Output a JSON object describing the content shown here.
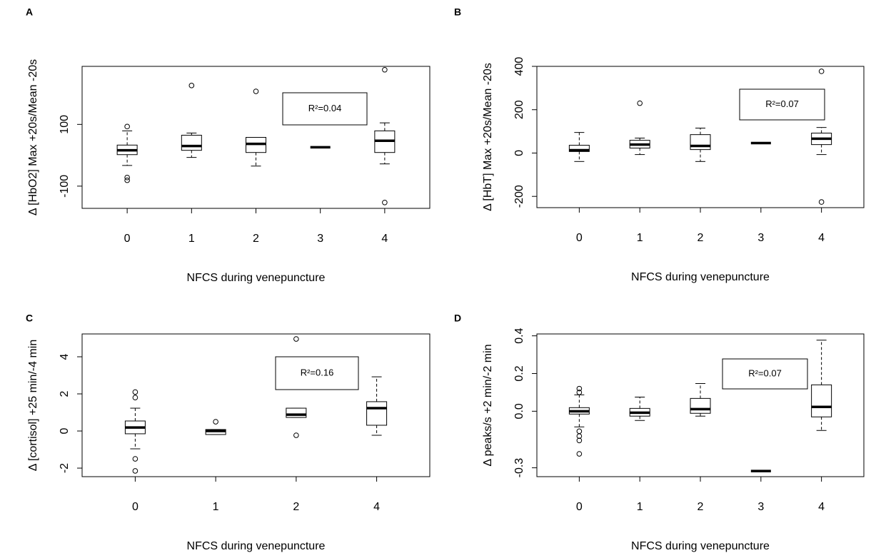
{
  "chart_data": [
    {
      "type": "box",
      "panel": "A",
      "y_label": "Δ [HbO2] Max +20s/Mean -20s",
      "x_label": "NFCS during venepuncture",
      "annotation": "R²=0.04",
      "categories": [
        "0",
        "1",
        "2",
        "3",
        "4"
      ],
      "whisker_low": [
        -33,
        -7,
        -35,
        26,
        -28
      ],
      "q1": [
        2,
        16,
        9,
        26,
        9
      ],
      "median": [
        16,
        30,
        37,
        26,
        47
      ],
      "q3": [
        33,
        65,
        58,
        26,
        79
      ],
      "whisker_high": [
        79,
        72,
        58,
        26,
        105
      ],
      "outliers": [
        [
          93,
          -72,
          -81
        ],
        [
          226
        ],
        [
          207
        ],
        [],
        [
          277,
          -153
        ]
      ],
      "ylim": [
        -172,
        288
      ],
      "yticks": [
        -100,
        100
      ]
    },
    {
      "type": "box",
      "panel": "B",
      "y_label": "Δ [HbT] Max +20s/Mean -20s",
      "x_label": "NFCS during venepuncture",
      "annotation": "R²=0.07",
      "categories": [
        "0",
        "1",
        "2",
        "3",
        "4"
      ],
      "whisker_low": [
        -39,
        -7,
        -39,
        46,
        -7
      ],
      "q1": [
        7,
        23,
        16,
        46,
        39
      ],
      "median": [
        13,
        39,
        33,
        46,
        66
      ],
      "q3": [
        36,
        59,
        85,
        46,
        92
      ],
      "whisker_high": [
        95,
        69,
        115,
        46,
        118
      ],
      "outliers": [
        [],
        [
          230
        ],
        [],
        [],
        [
          377,
          -226
        ]
      ],
      "ylim": [
        -252,
        400
      ],
      "yticks": [
        -200,
        0,
        200,
        400
      ]
    },
    {
      "type": "box",
      "panel": "C",
      "y_label": "Δ [cortisol] +25 min/-4 min",
      "x_label": "NFCS during venepuncture",
      "annotation": "R²=0.16",
      "categories": [
        "0",
        "1",
        "2",
        "4"
      ],
      "whisker_low": [
        -0.96,
        -0.19,
        0.73,
        -0.23
      ],
      "q1": [
        -0.15,
        -0.19,
        0.73,
        0.31
      ],
      "median": [
        0.19,
        0,
        0.88,
        1.23
      ],
      "q3": [
        0.54,
        0.08,
        1.23,
        1.58
      ],
      "whisker_high": [
        1.23,
        0.08,
        1.23,
        2.92
      ],
      "outliers": [
        [
          2.1,
          1.8,
          -1.5,
          -2.15
        ],
        [
          0.5
        ],
        [
          4.96,
          -0.23
        ],
        []
      ],
      "ylim": [
        -2.46,
        5.23
      ],
      "yticks": [
        -2,
        0,
        2,
        4
      ]
    },
    {
      "type": "box",
      "panel": "D",
      "y_label": "Δ peaks/s +2 min/-2 min",
      "x_label": "NFCS during venepuncture",
      "annotation": "R²=0.07",
      "categories": [
        "0",
        "1",
        "2",
        "3",
        "4"
      ],
      "whisker_low": [
        -0.083,
        -0.049,
        -0.026,
        -0.317,
        -0.102
      ],
      "q1": [
        -0.015,
        -0.026,
        -0.011,
        -0.317,
        -0.03
      ],
      "median": [
        0,
        -0.008,
        0.011,
        -0.317,
        0.023
      ],
      "q3": [
        0.019,
        0.015,
        0.068,
        -0.317,
        0.14
      ],
      "whisker_high": [
        0.087,
        0.075,
        0.147,
        -0.317,
        0.377
      ],
      "outliers": [
        [
          0.12,
          0.1,
          -0.106,
          -0.132,
          -0.155,
          -0.226
        ],
        [],
        [],
        [],
        []
      ],
      "ylim": [
        -0.347,
        0.41
      ],
      "yticks": [
        -0.3,
        {
          "value": 0,
          "label": "0.0"
        },
        0.2,
        0.4
      ]
    }
  ]
}
